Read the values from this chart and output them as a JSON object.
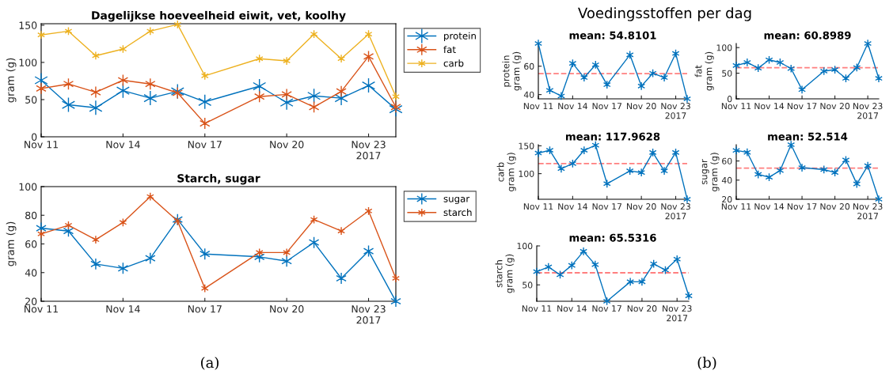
{
  "chart_data": [
    {
      "type": "line",
      "title": "Dagelijkse hoeveelheid eiwit, vet, koolhy",
      "ylabel": "gram (g)",
      "x": [
        "2017-11-11",
        "2017-11-12",
        "2017-11-13",
        "2017-11-14",
        "2017-11-15",
        "2017-11-16",
        "2017-11-17",
        "2017-11-19",
        "2017-11-20",
        "2017-11-21",
        "2017-11-22",
        "2017-11-23",
        "2017-11-24"
      ],
      "series": [
        {
          "name": "protein",
          "color": "#0072bd",
          "values": [
            76,
            43,
            39,
            62,
            52,
            61,
            47,
            68,
            46,
            55,
            52,
            69,
            37
          ]
        },
        {
          "name": "fat",
          "color": "#d95319",
          "values": [
            65,
            71,
            60,
            76,
            71,
            59,
            18,
            54,
            57,
            40,
            61,
            108,
            40
          ]
        },
        {
          "name": "carb",
          "color": "#edb120",
          "values": [
            137,
            142,
            109,
            118,
            142,
            151,
            82,
            105,
            102,
            138,
            105,
            138,
            54
          ]
        }
      ],
      "xlim": [
        "2017-11-11",
        "2017-11-24"
      ],
      "xticks": [
        {
          "value": "2017-11-11",
          "label": "Nov 11"
        },
        {
          "value": "2017-11-14",
          "label": "Nov 14"
        },
        {
          "value": "2017-11-17",
          "label": "Nov 17"
        },
        {
          "value": "2017-11-20",
          "label": "Nov 20"
        },
        {
          "value": "2017-11-23",
          "label": "Nov 23\n2017"
        }
      ],
      "ylim": [
        0,
        152
      ],
      "yticks": [
        0,
        50,
        100,
        150
      ],
      "marker": "cross",
      "line_style": "solid",
      "legend": "right"
    },
    {
      "type": "line",
      "title": "Starch, sugar",
      "ylabel": "gram (g)",
      "annotations": [
        "(a)"
      ],
      "x": [
        "2017-11-11",
        "2017-11-12",
        "2017-11-13",
        "2017-11-14",
        "2017-11-15",
        "2017-11-16",
        "2017-11-17",
        "2017-11-19",
        "2017-11-20",
        "2017-11-21",
        "2017-11-22",
        "2017-11-23",
        "2017-11-24"
      ],
      "series": [
        {
          "name": "sugar",
          "color": "#0072bd",
          "values": [
            71,
            69,
            46,
            43,
            50,
            77,
            53,
            51,
            48,
            61,
            36,
            55,
            20
          ]
        },
        {
          "name": "starch",
          "color": "#d95319",
          "values": [
            67,
            73,
            63,
            75,
            93,
            76,
            29,
            54,
            54,
            77,
            69,
            83,
            36
          ]
        }
      ],
      "xlim": [
        "2017-11-11",
        "2017-11-24"
      ],
      "xticks": [
        {
          "value": "2017-11-11",
          "label": "Nov 11"
        },
        {
          "value": "2017-11-14",
          "label": "Nov 14"
        },
        {
          "value": "2017-11-17",
          "label": "Nov 17"
        },
        {
          "value": "2017-11-20",
          "label": "Nov 20"
        },
        {
          "value": "2017-11-23",
          "label": "Nov 23\n2017"
        }
      ],
      "ylim": [
        20,
        100
      ],
      "yticks": [
        20,
        40,
        60,
        80,
        100
      ],
      "marker": "cross",
      "line_style": "solid",
      "legend": "right"
    },
    {
      "type": "line",
      "title": "mean: 54.8101",
      "ylabel": "protein\ngram (g)",
      "annotations": [
        "Voedingsstoffen per dag"
      ],
      "x": [
        "2017-11-11",
        "2017-11-12",
        "2017-11-13",
        "2017-11-14",
        "2017-11-15",
        "2017-11-16",
        "2017-11-17",
        "2017-11-19",
        "2017-11-20",
        "2017-11-21",
        "2017-11-22",
        "2017-11-23",
        "2017-11-24"
      ],
      "values": [
        76,
        43,
        39,
        62,
        52,
        61,
        47,
        68,
        46,
        55,
        52,
        69,
        37
      ],
      "color": "#0072bd",
      "xlim": [
        "2017-11-11",
        "2017-11-24"
      ],
      "xticks": [
        {
          "value": "2017-11-11",
          "label": "Nov 11"
        },
        {
          "value": "2017-11-14",
          "label": "Nov 14"
        },
        {
          "value": "2017-11-17",
          "label": "Nov 17"
        },
        {
          "value": "2017-11-20",
          "label": "Nov 20"
        },
        {
          "value": "2017-11-23",
          "label": "Nov 23\n2017"
        }
      ],
      "ylim": [
        37,
        76
      ],
      "yticks": [
        40,
        60
      ],
      "marker": "cross",
      "line_style": "solid",
      "ref_lines": [
        {
          "axis": "y",
          "value": 54.8101,
          "label": null,
          "color": "#ff7f7f",
          "line_style": "dashed"
        }
      ]
    },
    {
      "type": "line",
      "title": "mean: 60.8989",
      "ylabel": "fat\ngram (g)",
      "x": [
        "2017-11-11",
        "2017-11-12",
        "2017-11-13",
        "2017-11-14",
        "2017-11-15",
        "2017-11-16",
        "2017-11-17",
        "2017-11-19",
        "2017-11-20",
        "2017-11-21",
        "2017-11-22",
        "2017-11-23",
        "2017-11-24"
      ],
      "values": [
        65,
        71,
        60,
        76,
        71,
        59,
        18,
        54,
        57,
        40,
        61,
        108,
        40
      ],
      "color": "#0072bd",
      "xlim": [
        "2017-11-11",
        "2017-11-24"
      ],
      "xticks": [
        {
          "value": "2017-11-11",
          "label": "Nov 11"
        },
        {
          "value": "2017-11-14",
          "label": "Nov 14"
        },
        {
          "value": "2017-11-17",
          "label": "Nov 17"
        },
        {
          "value": "2017-11-20",
          "label": "Nov 20"
        },
        {
          "value": "2017-11-23",
          "label": "Nov 23\n2017"
        }
      ],
      "ylim": [
        0,
        108
      ],
      "yticks": [
        0,
        50,
        100
      ],
      "marker": "cross",
      "line_style": "solid",
      "ref_lines": [
        {
          "axis": "y",
          "value": 60.8989,
          "label": null,
          "color": "#ff7f7f",
          "line_style": "dashed"
        }
      ]
    },
    {
      "type": "line",
      "title": "mean: 117.9628",
      "ylabel": "carb\ngram (g)",
      "x": [
        "2017-11-11",
        "2017-11-12",
        "2017-11-13",
        "2017-11-14",
        "2017-11-15",
        "2017-11-16",
        "2017-11-17",
        "2017-11-19",
        "2017-11-20",
        "2017-11-21",
        "2017-11-22",
        "2017-11-23",
        "2017-11-24"
      ],
      "values": [
        137,
        142,
        109,
        118,
        142,
        151,
        82,
        105,
        102,
        138,
        105,
        138,
        54
      ],
      "color": "#0072bd",
      "xlim": [
        "2017-11-11",
        "2017-11-24"
      ],
      "xticks": [
        {
          "value": "2017-11-11",
          "label": "Nov 11"
        },
        {
          "value": "2017-11-14",
          "label": "Nov 14"
        },
        {
          "value": "2017-11-17",
          "label": "Nov 17"
        },
        {
          "value": "2017-11-20",
          "label": "Nov 20"
        },
        {
          "value": "2017-11-23",
          "label": "Nov 23\n2017"
        }
      ],
      "ylim": [
        54,
        152
      ],
      "yticks": [
        100,
        150
      ],
      "marker": "cross",
      "line_style": "solid",
      "ref_lines": [
        {
          "axis": "y",
          "value": 117.9628,
          "label": null,
          "color": "#ff7f7f",
          "line_style": "dashed"
        }
      ]
    },
    {
      "type": "line",
      "title": "mean: 52.514",
      "ylabel": "sugar\ngram (g)",
      "x": [
        "2017-11-11",
        "2017-11-12",
        "2017-11-13",
        "2017-11-14",
        "2017-11-15",
        "2017-11-16",
        "2017-11-17",
        "2017-11-19",
        "2017-11-20",
        "2017-11-21",
        "2017-11-22",
        "2017-11-23",
        "2017-11-24"
      ],
      "values": [
        71,
        69,
        46,
        43,
        50,
        77,
        53,
        51,
        48,
        61,
        36,
        55,
        20
      ],
      "color": "#0072bd",
      "xlim": [
        "2017-11-11",
        "2017-11-24"
      ],
      "xticks": [
        {
          "value": "2017-11-11",
          "label": "Nov 11"
        },
        {
          "value": "2017-11-14",
          "label": "Nov 14"
        },
        {
          "value": "2017-11-17",
          "label": "Nov 17"
        },
        {
          "value": "2017-11-20",
          "label": "Nov 20"
        },
        {
          "value": "2017-11-23",
          "label": "Nov 23\n2017"
        }
      ],
      "ylim": [
        20,
        77
      ],
      "yticks": [
        20,
        40,
        60
      ],
      "marker": "cross",
      "line_style": "solid",
      "ref_lines": [
        {
          "axis": "y",
          "value": 52.514,
          "label": null,
          "color": "#ff7f7f",
          "line_style": "dashed"
        }
      ]
    },
    {
      "type": "line",
      "title": "mean: 65.5316",
      "ylabel": "starch\ngram (g)",
      "annotations": [
        "(b)"
      ],
      "x": [
        "2017-11-11",
        "2017-11-12",
        "2017-11-13",
        "2017-11-14",
        "2017-11-15",
        "2017-11-16",
        "2017-11-17",
        "2017-11-19",
        "2017-11-20",
        "2017-11-21",
        "2017-11-22",
        "2017-11-23",
        "2017-11-24"
      ],
      "values": [
        67,
        73,
        63,
        75,
        93,
        76,
        29,
        54,
        54,
        77,
        69,
        83,
        36
      ],
      "color": "#0072bd",
      "xlim": [
        "2017-11-11",
        "2017-11-24"
      ],
      "xticks": [
        {
          "value": "2017-11-11",
          "label": "Nov 11"
        },
        {
          "value": "2017-11-14",
          "label": "Nov 14"
        },
        {
          "value": "2017-11-17",
          "label": "Nov 17"
        },
        {
          "value": "2017-11-20",
          "label": "Nov 20"
        },
        {
          "value": "2017-11-23",
          "label": "Nov 23\n2017"
        }
      ],
      "ylim": [
        29,
        100
      ],
      "yticks": [
        50,
        100
      ],
      "marker": "cross",
      "line_style": "solid",
      "ref_lines": [
        {
          "axis": "y",
          "value": 65.5316,
          "label": null,
          "color": "#ff7f7f",
          "line_style": "dashed"
        }
      ]
    }
  ]
}
